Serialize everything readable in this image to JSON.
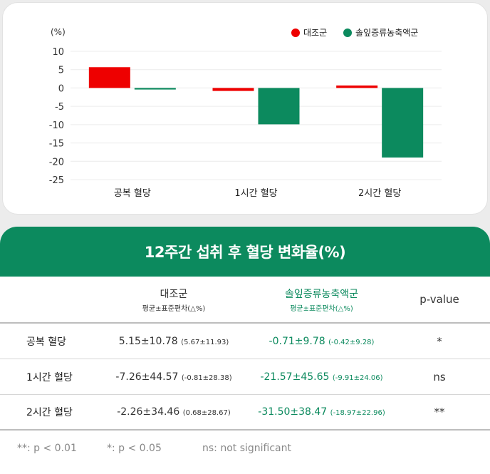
{
  "chart_data": {
    "type": "bar",
    "unit_label": "(%)",
    "categories": [
      "공복 혈당",
      "1시간 혈당",
      "2시간 혈당"
    ],
    "series": [
      {
        "name": "대조군",
        "color": "#ee0000",
        "values": [
          5.67,
          -0.81,
          0.68
        ]
      },
      {
        "name": "솔잎증류농축액군",
        "color": "#0c8a5e",
        "values": [
          -0.42,
          -9.91,
          -18.97
        ]
      }
    ],
    "ylim": [
      -25,
      10
    ],
    "yticks": [
      10,
      5,
      0,
      -5,
      -10,
      -15,
      -20,
      -25
    ],
    "legend_position": "top-right",
    "grid": true
  },
  "table": {
    "title": "12주간 섭취 후 혈당 변화율(%)",
    "headers": {
      "control": "대조군",
      "control_sub": "평균±표준편차(△%)",
      "treatment": "솔잎증류농축액군",
      "treatment_sub": "평균±표준편차(△%)",
      "pvalue": "p-value"
    },
    "rows": [
      {
        "label": "공복 혈당",
        "control": "5.15±10.78",
        "control_delta": "(5.67±11.93)",
        "treatment": "-0.71±9.78",
        "treatment_delta": "(-0.42±9.28)",
        "pvalue": "*"
      },
      {
        "label": "1시간 혈당",
        "control": "-7.26±44.57",
        "control_delta": "(-0.81±28.38)",
        "treatment": "-21.57±45.65",
        "treatment_delta": "(-9.91±24.06)",
        "pvalue": "ns"
      },
      {
        "label": "2시간 혈당",
        "control": "-2.26±34.46",
        "control_delta": "(0.68±28.67)",
        "treatment": "-31.50±38.47",
        "treatment_delta": "(-18.97±22.96)",
        "pvalue": "**"
      }
    ],
    "footnotes": {
      "double_star": "**: p < 0.01",
      "single_star": "*: p < 0.05",
      "ns": "ns: not significant"
    }
  }
}
